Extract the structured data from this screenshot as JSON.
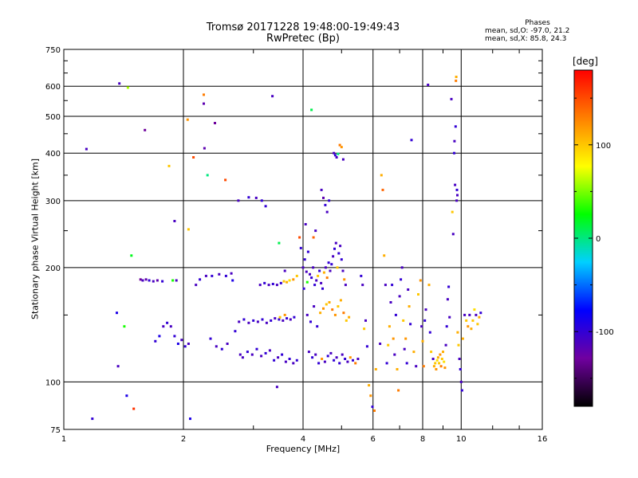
{
  "chart_data": {
    "type": "scatter",
    "title": "Tromsø 20171228 19:48:00-19:49:43",
    "subtitle": "RwPretec (Bp)",
    "xlabel": "Frequency [MHz]",
    "ylabel": "Stationary phase Virtual Height [km]",
    "x_scale": "log",
    "y_scale": "log",
    "xlim": [
      1,
      16
    ],
    "ylim": [
      75,
      750
    ],
    "x_ticks": [
      "1",
      "2",
      "4",
      "6",
      "8",
      "10",
      "16"
    ],
    "y_ticks": [
      "75",
      "100",
      "200",
      "300",
      "400",
      "500",
      "600",
      "750"
    ],
    "grid": true,
    "stats": {
      "heading": "Phases",
      "line1": "mean, sd,O: -97.0, 21.2",
      "line2": "mean, sd,X:  85.8, 24.3"
    },
    "colorbar": {
      "unit": "[deg]",
      "range": [
        -180,
        180
      ],
      "ticks": [
        "100",
        "0",
        "-100"
      ],
      "colors": [
        "#000000",
        "#7000a0",
        "#0000ff",
        "#00d0ff",
        "#00ff00",
        "#ffff00",
        "#ff8000",
        "#ff0000"
      ]
    },
    "points": [
      [
        1.14,
        410,
        -110
      ],
      [
        1.18,
        80,
        -100
      ],
      [
        1.38,
        610,
        -110
      ],
      [
        1.45,
        595,
        60
      ],
      [
        1.48,
        215,
        20
      ],
      [
        1.37,
        110,
        -110
      ],
      [
        1.5,
        85,
        160
      ],
      [
        1.44,
        92,
        -90
      ],
      [
        1.36,
        152,
        -90
      ],
      [
        1.42,
        140,
        30
      ],
      [
        1.56,
        186,
        -130
      ],
      [
        1.58,
        185,
        -110
      ],
      [
        1.61,
        186,
        -120
      ],
      [
        1.64,
        185,
        -100
      ],
      [
        1.68,
        184,
        -110
      ],
      [
        1.72,
        185,
        -120
      ],
      [
        1.77,
        184,
        -100
      ],
      [
        1.6,
        460,
        -130
      ],
      [
        1.88,
        185,
        30
      ],
      [
        1.84,
        370,
        100
      ],
      [
        1.9,
        265,
        -110
      ],
      [
        1.92,
        185,
        -110
      ],
      [
        1.7,
        128,
        -100
      ],
      [
        1.74,
        132,
        -90
      ],
      [
        1.78,
        140,
        -110
      ],
      [
        1.82,
        143,
        -100
      ],
      [
        1.86,
        140,
        -110
      ],
      [
        1.9,
        132,
        -100
      ],
      [
        1.94,
        126,
        -90
      ],
      [
        1.98,
        129,
        -110
      ],
      [
        2.02,
        124,
        -100
      ],
      [
        2.06,
        126,
        -110
      ],
      [
        2.08,
        80,
        -90
      ],
      [
        2.06,
        252,
        100
      ],
      [
        2.05,
        490,
        120
      ],
      [
        2.12,
        390,
        150
      ],
      [
        2.25,
        570,
        130
      ],
      [
        2.25,
        540,
        -120
      ],
      [
        2.3,
        350,
        0
      ],
      [
        2.26,
        412,
        -120
      ],
      [
        2.4,
        480,
        -130
      ],
      [
        2.55,
        340,
        150
      ],
      [
        2.15,
        180,
        -110
      ],
      [
        2.2,
        186,
        -100
      ],
      [
        2.28,
        190,
        -110
      ],
      [
        2.36,
        190,
        -100
      ],
      [
        2.46,
        192,
        -110
      ],
      [
        2.56,
        190,
        -100
      ],
      [
        2.64,
        193,
        -110
      ],
      [
        2.66,
        185,
        -90
      ],
      [
        2.34,
        130,
        -100
      ],
      [
        2.42,
        124,
        -110
      ],
      [
        2.5,
        122,
        -100
      ],
      [
        2.58,
        126,
        -110
      ],
      [
        2.7,
        136,
        -100
      ],
      [
        2.78,
        118,
        -110
      ],
      [
        2.75,
        300,
        -110
      ],
      [
        2.92,
        306,
        -100
      ],
      [
        3.05,
        305,
        -110
      ],
      [
        3.15,
        300,
        -100
      ],
      [
        3.22,
        290,
        -100
      ],
      [
        3.35,
        565,
        -110
      ],
      [
        3.48,
        232,
        10
      ],
      [
        2.76,
        144,
        -110
      ],
      [
        2.84,
        146,
        -100
      ],
      [
        2.92,
        143,
        -110
      ],
      [
        3.0,
        145,
        -100
      ],
      [
        3.08,
        144,
        -110
      ],
      [
        3.16,
        146,
        -100
      ],
      [
        3.24,
        143,
        -110
      ],
      [
        3.32,
        145,
        -100
      ],
      [
        3.4,
        147,
        -110
      ],
      [
        3.48,
        146,
        -100
      ],
      [
        3.56,
        145,
        -110
      ],
      [
        3.64,
        147,
        -100
      ],
      [
        3.72,
        146,
        -110
      ],
      [
        3.8,
        148,
        -100
      ],
      [
        3.5,
        148,
        100
      ],
      [
        3.6,
        150,
        120
      ],
      [
        2.82,
        116,
        -110
      ],
      [
        2.9,
        120,
        -100
      ],
      [
        2.98,
        118,
        -110
      ],
      [
        3.06,
        122,
        -100
      ],
      [
        3.14,
        117,
        -110
      ],
      [
        3.22,
        119,
        -100
      ],
      [
        3.3,
        121,
        -110
      ],
      [
        3.38,
        114,
        -100
      ],
      [
        3.46,
        116,
        -110
      ],
      [
        3.54,
        118,
        -100
      ],
      [
        3.62,
        113,
        -110
      ],
      [
        3.7,
        115,
        -100
      ],
      [
        3.78,
        112,
        -110
      ],
      [
        3.86,
        114,
        -100
      ],
      [
        3.44,
        97,
        -110
      ],
      [
        3.12,
        180,
        -110
      ],
      [
        3.2,
        182,
        -100
      ],
      [
        3.28,
        180,
        -110
      ],
      [
        3.36,
        181,
        -100
      ],
      [
        3.44,
        180,
        -110
      ],
      [
        3.52,
        182,
        -100
      ],
      [
        3.58,
        184,
        100
      ],
      [
        3.64,
        183,
        110
      ],
      [
        3.7,
        185,
        90
      ],
      [
        3.78,
        186,
        120
      ],
      [
        3.86,
        190,
        100
      ],
      [
        3.6,
        196,
        -110
      ],
      [
        3.92,
        240,
        150
      ],
      [
        3.95,
        225,
        -100
      ],
      [
        4.0,
        200,
        -110
      ],
      [
        4.04,
        210,
        -100
      ],
      [
        4.08,
        195,
        -110
      ],
      [
        4.12,
        220,
        -100
      ],
      [
        4.06,
        260,
        -110
      ],
      [
        4.02,
        176,
        -100
      ],
      [
        4.1,
        183,
        30
      ],
      [
        4.16,
        192,
        -110
      ],
      [
        4.2,
        188,
        -100
      ],
      [
        4.24,
        200,
        -110
      ],
      [
        4.28,
        180,
        -100
      ],
      [
        4.32,
        185,
        -110
      ],
      [
        4.36,
        190,
        100
      ],
      [
        4.4,
        196,
        -100
      ],
      [
        4.44,
        182,
        -110
      ],
      [
        4.48,
        176,
        -100
      ],
      [
        4.52,
        194,
        110
      ],
      [
        4.56,
        200,
        -110
      ],
      [
        4.6,
        188,
        130
      ],
      [
        4.64,
        206,
        -100
      ],
      [
        4.68,
        196,
        -110
      ],
      [
        4.72,
        204,
        -100
      ],
      [
        4.76,
        214,
        -110
      ],
      [
        4.8,
        224,
        -100
      ],
      [
        4.84,
        232,
        -110
      ],
      [
        4.88,
        200,
        100
      ],
      [
        4.92,
        218,
        -100
      ],
      [
        4.96,
        228,
        -110
      ],
      [
        5.0,
        210,
        -100
      ],
      [
        5.04,
        196,
        -110
      ],
      [
        5.08,
        186,
        120
      ],
      [
        5.12,
        180,
        -110
      ],
      [
        4.2,
        520,
        10
      ],
      [
        4.25,
        240,
        140
      ],
      [
        4.3,
        250,
        -110
      ],
      [
        4.45,
        320,
        -110
      ],
      [
        4.5,
        305,
        -120
      ],
      [
        4.55,
        292,
        -100
      ],
      [
        4.6,
        280,
        -110
      ],
      [
        4.65,
        300,
        -100
      ],
      [
        4.78,
        400,
        -110
      ],
      [
        4.82,
        395,
        -100
      ],
      [
        4.86,
        390,
        -110
      ],
      [
        4.9,
        398,
        0
      ],
      [
        4.95,
        420,
        130
      ],
      [
        5.0,
        415,
        120
      ],
      [
        5.05,
        385,
        -110
      ],
      [
        4.1,
        150,
        -110
      ],
      [
        4.18,
        144,
        -100
      ],
      [
        4.26,
        158,
        -110
      ],
      [
        4.34,
        140,
        -100
      ],
      [
        4.42,
        152,
        110
      ],
      [
        4.5,
        156,
        120
      ],
      [
        4.58,
        160,
        100
      ],
      [
        4.66,
        162,
        110
      ],
      [
        4.74,
        155,
        130
      ],
      [
        4.82,
        150,
        120
      ],
      [
        4.9,
        158,
        100
      ],
      [
        4.98,
        164,
        110
      ],
      [
        5.06,
        152,
        130
      ],
      [
        5.14,
        145,
        100
      ],
      [
        5.22,
        148,
        110
      ],
      [
        4.14,
        120,
        -110
      ],
      [
        4.22,
        116,
        -100
      ],
      [
        4.3,
        118,
        -110
      ],
      [
        4.38,
        112,
        -100
      ],
      [
        4.46,
        115,
        120
      ],
      [
        4.54,
        113,
        -110
      ],
      [
        4.62,
        117,
        -100
      ],
      [
        4.7,
        119,
        -110
      ],
      [
        4.78,
        114,
        -100
      ],
      [
        4.86,
        116,
        -110
      ],
      [
        4.94,
        112,
        -100
      ],
      [
        5.02,
        118,
        -110
      ],
      [
        5.1,
        115,
        -100
      ],
      [
        5.18,
        113,
        -110
      ],
      [
        5.26,
        116,
        120
      ],
      [
        5.34,
        114,
        -100
      ],
      [
        5.42,
        112,
        130
      ],
      [
        5.5,
        115,
        -110
      ],
      [
        5.6,
        190,
        -100
      ],
      [
        5.65,
        180,
        -110
      ],
      [
        5.7,
        138,
        100
      ],
      [
        5.75,
        145,
        -110
      ],
      [
        5.8,
        124,
        -100
      ],
      [
        5.86,
        98,
        110
      ],
      [
        5.92,
        92,
        120
      ],
      [
        5.98,
        86,
        -100
      ],
      [
        6.05,
        84,
        130
      ],
      [
        6.1,
        108,
        110
      ],
      [
        6.25,
        126,
        -110
      ],
      [
        6.3,
        350,
        110
      ],
      [
        6.35,
        320,
        140
      ],
      [
        6.4,
        215,
        110
      ],
      [
        6.45,
        180,
        -110
      ],
      [
        6.5,
        112,
        -100
      ],
      [
        6.55,
        125,
        100
      ],
      [
        6.6,
        140,
        110
      ],
      [
        6.65,
        162,
        -110
      ],
      [
        6.7,
        180,
        -100
      ],
      [
        6.75,
        130,
        120
      ],
      [
        6.8,
        118,
        -110
      ],
      [
        6.85,
        150,
        -100
      ],
      [
        6.9,
        108,
        110
      ],
      [
        6.95,
        95,
        130
      ],
      [
        7.0,
        168,
        -110
      ],
      [
        7.05,
        186,
        -100
      ],
      [
        7.1,
        200,
        -110
      ],
      [
        7.15,
        145,
        100
      ],
      [
        7.2,
        122,
        -110
      ],
      [
        7.25,
        130,
        120
      ],
      [
        7.3,
        112,
        -100
      ],
      [
        7.35,
        175,
        -110
      ],
      [
        7.4,
        158,
        110
      ],
      [
        7.45,
        142,
        -100
      ],
      [
        7.5,
        433,
        -100
      ],
      [
        7.6,
        120,
        110
      ],
      [
        7.7,
        110,
        -110
      ],
      [
        7.8,
        170,
        100
      ],
      [
        7.9,
        185,
        120
      ],
      [
        7.95,
        140,
        -110
      ],
      [
        8.0,
        128,
        110
      ],
      [
        8.05,
        110,
        130
      ],
      [
        8.1,
        145,
        -100
      ],
      [
        8.15,
        155,
        -110
      ],
      [
        8.25,
        605,
        -110
      ],
      [
        8.3,
        180,
        110
      ],
      [
        8.35,
        135,
        -100
      ],
      [
        8.4,
        120,
        100
      ],
      [
        8.5,
        115,
        -110
      ],
      [
        8.55,
        110,
        110
      ],
      [
        8.6,
        112,
        100
      ],
      [
        8.65,
        108,
        120
      ],
      [
        8.7,
        114,
        90
      ],
      [
        8.75,
        116,
        110
      ],
      [
        8.8,
        112,
        100
      ],
      [
        8.85,
        118,
        120
      ],
      [
        8.9,
        110,
        130
      ],
      [
        8.95,
        115,
        100
      ],
      [
        9.0,
        120,
        110
      ],
      [
        9.05,
        113,
        90
      ],
      [
        9.1,
        109,
        120
      ],
      [
        9.15,
        125,
        -110
      ],
      [
        9.2,
        140,
        -100
      ],
      [
        9.25,
        165,
        -110
      ],
      [
        9.3,
        178,
        -100
      ],
      [
        9.35,
        148,
        -110
      ],
      [
        9.45,
        555,
        -110
      ],
      [
        9.5,
        280,
        100
      ],
      [
        9.55,
        245,
        -110
      ],
      [
        9.6,
        400,
        -100
      ],
      [
        9.62,
        430,
        -110
      ],
      [
        9.65,
        330,
        -110
      ],
      [
        9.68,
        470,
        -100
      ],
      [
        9.7,
        620,
        130
      ],
      [
        9.72,
        635,
        110
      ],
      [
        9.74,
        300,
        -110
      ],
      [
        9.76,
        320,
        -100
      ],
      [
        9.78,
        310,
        -110
      ],
      [
        9.8,
        135,
        110
      ],
      [
        9.85,
        125,
        100
      ],
      [
        9.9,
        115,
        -110
      ],
      [
        9.95,
        108,
        -100
      ],
      [
        10.0,
        100,
        -110
      ],
      [
        10.05,
        95,
        -100
      ],
      [
        10.1,
        130,
        110
      ],
      [
        10.2,
        150,
        -110
      ],
      [
        10.3,
        145,
        100
      ],
      [
        10.4,
        140,
        120
      ],
      [
        10.5,
        150,
        -110
      ],
      [
        10.6,
        138,
        110
      ],
      [
        10.7,
        145,
        100
      ],
      [
        10.8,
        155,
        90
      ],
      [
        10.9,
        150,
        -110
      ],
      [
        11.0,
        142,
        100
      ],
      [
        11.1,
        148,
        110
      ],
      [
        11.2,
        152,
        -100
      ]
    ]
  }
}
